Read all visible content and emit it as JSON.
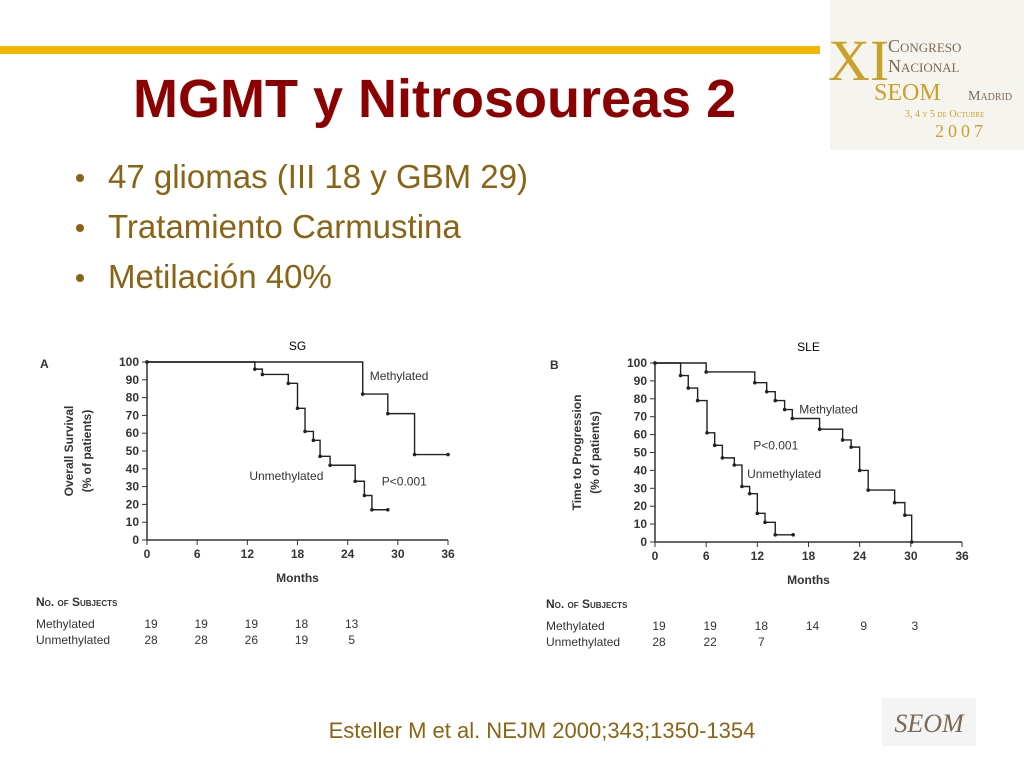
{
  "header": {
    "title": "MGMT y Nitrosoureas 2",
    "logo": {
      "roman": "XI",
      "line1": "Congreso",
      "line2": "Nacional",
      "line3": "SEOM",
      "city": "Madrid",
      "dates": "3, 4 y 5 de Octubre",
      "year": "2007"
    }
  },
  "bullets": [
    "47 gliomas (III 18 y GBM 29)",
    "Tratamiento Carmustina",
    "Metilación 40%"
  ],
  "citation": "Esteller M et al. NEJM 2000;343;1350-1354",
  "footer_logo": "SEOM",
  "chart_data": [
    {
      "type": "line",
      "step": true,
      "panel": "A",
      "subtitle": "SG",
      "ylabel": [
        "Overall Survival",
        "(% of patients)"
      ],
      "xlabel": "Months",
      "xlim": [
        0,
        36
      ],
      "xticks": [
        0,
        6,
        12,
        18,
        24,
        30,
        36
      ],
      "ylim": [
        0,
        100
      ],
      "yticks": [
        0,
        10,
        20,
        30,
        40,
        50,
        60,
        70,
        80,
        90,
        100
      ],
      "annotations": [
        "P<0.001"
      ],
      "series": [
        {
          "name": "Methylated",
          "color": "#222222",
          "x": [
            0,
            25.8,
            28.8,
            32,
            36
          ],
          "values": [
            100,
            82,
            71,
            48,
            48
          ]
        },
        {
          "name": "Unmethylated",
          "color": "#222222",
          "x": [
            0,
            12.9,
            13.8,
            16.9,
            18,
            18.9,
            19.9,
            20.7,
            21.9,
            24.9,
            26,
            26.9,
            28.8
          ],
          "values": [
            100,
            96,
            93,
            88,
            74,
            61,
            56,
            47,
            42,
            33,
            25,
            17,
            17
          ]
        }
      ],
      "table": {
        "title": "No. of Subjects",
        "rows": [
          {
            "label": "Methylated",
            "values": [
              19,
              19,
              19,
              18,
              13
            ]
          },
          {
            "label": "Unmethylated",
            "values": [
              28,
              28,
              26,
              19,
              5
            ]
          }
        ]
      }
    },
    {
      "type": "line",
      "step": true,
      "panel": "B",
      "subtitle": "SLE",
      "ylabel": [
        "Time to Progression",
        "(% of patients)"
      ],
      "xlabel": "Months",
      "xlim": [
        0,
        36
      ],
      "xticks": [
        0,
        6,
        12,
        18,
        24,
        30,
        36
      ],
      "ylim": [
        0,
        100
      ],
      "yticks": [
        0,
        10,
        20,
        30,
        40,
        50,
        60,
        70,
        80,
        90,
        100
      ],
      "annotations": [
        "P<0.001"
      ],
      "series": [
        {
          "name": "Methylated",
          "color": "#222222",
          "x": [
            0,
            6,
            11.7,
            13.1,
            14.1,
            15.2,
            16.1,
            19.3,
            22,
            23,
            24,
            25,
            28.1,
            29.3,
            30.1
          ],
          "values": [
            100,
            95,
            89,
            84,
            79,
            74,
            69,
            63,
            57,
            53,
            40,
            29,
            22,
            15,
            0
          ]
        },
        {
          "name": "Unmethylated",
          "color": "#222222",
          "x": [
            0,
            3,
            3.9,
            5,
            6.1,
            7,
            7.9,
            9.3,
            10.2,
            11.1,
            12,
            12.9,
            14.1,
            16.2
          ],
          "values": [
            100,
            93,
            86,
            79,
            61,
            54,
            47,
            43,
            31,
            27,
            16,
            11,
            4,
            4
          ]
        }
      ],
      "table": {
        "title": "No. of Subjects",
        "rows": [
          {
            "label": "Methylated",
            "values": [
              19,
              19,
              18,
              14,
              9,
              3
            ]
          },
          {
            "label": "Unmethylated",
            "values": [
              28,
              22,
              7
            ]
          }
        ]
      }
    }
  ]
}
